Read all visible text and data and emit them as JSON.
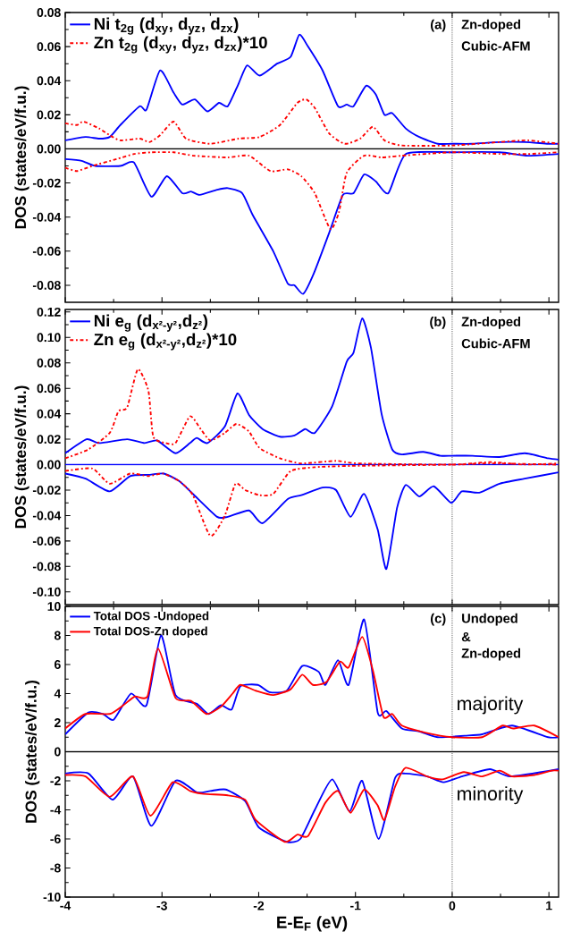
{
  "chart_data": [
    {
      "type": "line",
      "ylabel": "DOS (states/eV/f.u.)",
      "legend": "top left",
      "tick_labels": "y",
      "xlim": [
        -4,
        1.1
      ],
      "ylim": [
        -0.09,
        0.08
      ],
      "xticks": [
        -4,
        -3,
        -2,
        -1,
        0,
        1
      ],
      "yticks": [
        {
          "value": -0.08,
          "label": "-0.08"
        },
        {
          "value": -0.06,
          "label": "-0.06"
        },
        {
          "value": -0.04,
          "label": "-0.04"
        },
        {
          "value": -0.02,
          "label": "-0.02"
        },
        {
          "value": 0,
          "label": "0.00"
        },
        {
          "value": 0.02,
          "label": "0.02"
        },
        {
          "value": 0.04,
          "label": "0.04"
        },
        {
          "value": 0.06,
          "label": "0.06"
        },
        {
          "value": 0.08,
          "label": "0.08"
        }
      ],
      "annotations": [
        "(a)",
        "Zn-doped",
        "Cubic-AFM"
      ],
      "ref_lines": [
        {
          "axis": "x",
          "value": 0,
          "color": "#000000",
          "line_style": "dotted"
        },
        {
          "axis": "y",
          "value": 0,
          "color": "#000000",
          "line_style": "solid"
        }
      ],
      "series": [
        {
          "name": "Ni  t$_{2g}$ (d$_{xy}$, d$_{yz}$, d$_{zx}$)",
          "color": "#0000ff",
          "line_style": "solid",
          "x": [
            -4.0,
            -3.79,
            -3.65,
            -3.54,
            -3.43,
            -3.23,
            -3.16,
            -3.02,
            -2.88,
            -2.79,
            -2.66,
            -2.53,
            -2.41,
            -2.32,
            -2.21,
            -2.12,
            -1.99,
            -1.81,
            -1.67,
            -1.58,
            -1.49,
            -1.34,
            -1.18,
            -1.09,
            -1.02,
            -0.89,
            -0.79,
            -0.7,
            -0.62,
            -0.48,
            -0.34,
            -0.15,
            0,
            0.21,
            0.49,
            0.75,
            0.99,
            1.1
          ],
          "values": [
            0.005,
            0.007,
            0.006,
            0.007,
            0.014,
            0.025,
            0.023,
            0.046,
            0.033,
            0.026,
            0.029,
            0.022,
            0.027,
            0.025,
            0.038,
            0.049,
            0.043,
            0.05,
            0.054,
            0.067,
            0.06,
            0.046,
            0.025,
            0.026,
            0.025,
            0.037,
            0.032,
            0.02,
            0.021,
            0.012,
            0.007,
            0.003,
            0.003,
            0.003,
            0.004,
            0.004,
            0.003,
            0.003
          ]
        },
        {
          "name": "Zn t$_{2g}$ (d$_{xy}$, d$_{yz}$, d$_{zx}$)*10",
          "color": "#ff0000",
          "line_style": "dashdot",
          "x": [
            -4.0,
            -3.88,
            -3.81,
            -3.65,
            -3.54,
            -3.43,
            -3.23,
            -3.13,
            -3.02,
            -2.88,
            -2.75,
            -2.5,
            -2.21,
            -1.99,
            -1.78,
            -1.6,
            -1.51,
            -1.42,
            -1.27,
            -1.11,
            -0.95,
            -0.82,
            -0.7,
            -0.52,
            0,
            0.49,
            0.78,
            1.1
          ],
          "values": [
            0.015,
            0.014,
            0.016,
            0.012,
            0.008,
            0.005,
            0.006,
            0.004,
            0.008,
            0.016,
            0.006,
            0.003,
            0.006,
            0.007,
            0.014,
            0.027,
            0.029,
            0.024,
            0.009,
            0.003,
            0.006,
            0.013,
            0.005,
            0.002,
            0.002,
            0.004,
            0.005,
            0.003
          ]
        },
        {
          "color": "#0000ff",
          "line_style": "solid",
          "x": [
            -4.0,
            -3.83,
            -3.69,
            -3.43,
            -3.29,
            -3.11,
            -2.95,
            -2.79,
            -2.7,
            -2.61,
            -2.43,
            -2.32,
            -2.17,
            -2.06,
            -1.85,
            -1.7,
            -1.63,
            -1.54,
            -1.43,
            -1.27,
            -1.13,
            -1.02,
            -0.91,
            -0.79,
            -0.66,
            -0.48,
            0,
            0.49,
            0.78,
            1.1
          ],
          "values": [
            -0.006,
            -0.007,
            -0.01,
            -0.01,
            -0.008,
            -0.028,
            -0.016,
            -0.026,
            -0.025,
            -0.027,
            -0.024,
            -0.023,
            -0.026,
            -0.039,
            -0.06,
            -0.079,
            -0.08,
            -0.085,
            -0.073,
            -0.049,
            -0.027,
            -0.026,
            -0.015,
            -0.019,
            -0.026,
            -0.003,
            -0.002,
            -0.002,
            -0.004,
            -0.003
          ]
        },
        {
          "color": "#ff0000",
          "line_style": "dashdot",
          "x": [
            -4.0,
            -3.88,
            -3.72,
            -3.47,
            -3.29,
            -3.11,
            -2.88,
            -2.67,
            -2.32,
            -2.1,
            -1.88,
            -1.7,
            -1.56,
            -1.42,
            -1.26,
            -1.17,
            -1.09,
            -0.91,
            -0.73,
            -0.52,
            0,
            0.49,
            0.78,
            1.1
          ],
          "values": [
            -0.011,
            -0.013,
            -0.01,
            -0.006,
            -0.003,
            -0.002,
            -0.002,
            -0.004,
            -0.005,
            -0.004,
            -0.013,
            -0.012,
            -0.016,
            -0.026,
            -0.047,
            -0.037,
            -0.014,
            -0.004,
            -0.005,
            -0.004,
            -0.002,
            -0.003,
            -0.003,
            -0.002
          ]
        }
      ]
    },
    {
      "type": "line",
      "ylabel": "DOS (states/eV/f.u.)",
      "legend": "top left",
      "tick_labels": "y",
      "xlim": [
        -4,
        1.1
      ],
      "ylim": [
        -0.11,
        0.122
      ],
      "xticks": [
        -4,
        -3,
        -2,
        -1,
        0,
        1
      ],
      "yticks": [
        {
          "value": -0.1,
          "label": "-0.10"
        },
        {
          "value": -0.08,
          "label": "-0.08"
        },
        {
          "value": -0.06,
          "label": "-0.06"
        },
        {
          "value": -0.04,
          "label": "-0.04"
        },
        {
          "value": -0.02,
          "label": "-0.02"
        },
        {
          "value": 0,
          "label": "0.00"
        },
        {
          "value": 0.02,
          "label": "0.02"
        },
        {
          "value": 0.04,
          "label": "0.04"
        },
        {
          "value": 0.06,
          "label": "0.06"
        },
        {
          "value": 0.08,
          "label": "0.08"
        },
        {
          "value": 0.1,
          "label": "0.10"
        },
        {
          "value": 0.12,
          "label": "0.12"
        }
      ],
      "annotations": [
        "(b)",
        "Zn-doped",
        "Cubic-AFM"
      ],
      "ref_lines": [
        {
          "axis": "x",
          "value": 0,
          "color": "#000000",
          "line_style": "dotted"
        },
        {
          "axis": "y",
          "value": 0,
          "color": "#0000ff",
          "line_style": "solid"
        }
      ],
      "series": [
        {
          "name": "Ni  e$_{g}$ (d$_{x²-y²}$,d$_{z²}$)",
          "color": "#0000ff",
          "line_style": "solid",
          "x": [
            -4.0,
            -3.78,
            -3.65,
            -3.36,
            -3.18,
            -3.05,
            -2.86,
            -2.71,
            -2.64,
            -2.53,
            -2.35,
            -2.22,
            -2.1,
            -1.96,
            -1.78,
            -1.63,
            -1.52,
            -1.42,
            -1.24,
            -1.09,
            -1.02,
            -0.93,
            -0.84,
            -0.73,
            -0.62,
            -0.52,
            -0.3,
            -0.12,
            0,
            0.21,
            0.49,
            0.75,
            0.99,
            1.1
          ],
          "values": [
            0.009,
            0.02,
            0.017,
            0.02,
            0.017,
            0.019,
            0.009,
            0.017,
            0.021,
            0.017,
            0.03,
            0.056,
            0.039,
            0.028,
            0.022,
            0.023,
            0.028,
            0.025,
            0.046,
            0.081,
            0.088,
            0.115,
            0.092,
            0.04,
            0.012,
            0.008,
            0.01,
            0.007,
            0.007,
            0.007,
            0.006,
            0.009,
            0.005,
            0.004
          ]
        },
        {
          "name": "Zn e$_{g}$ (d$_{x²-y²}$,d$_{z²}$)*10",
          "color": "#ff0000",
          "line_style": "dashdot",
          "x": [
            -4.0,
            -3.76,
            -3.54,
            -3.45,
            -3.36,
            -3.25,
            -3.14,
            -3.09,
            -2.96,
            -2.86,
            -2.71,
            -2.6,
            -2.5,
            -2.35,
            -2.23,
            -2.1,
            -1.99,
            -1.78,
            -1.56,
            -1.2,
            -0.98,
            0,
            0.39,
            0.75,
            1.1
          ],
          "values": [
            0.005,
            0.012,
            0.025,
            0.042,
            0.045,
            0.075,
            0.058,
            0.022,
            0.017,
            0.017,
            0.038,
            0.028,
            0.019,
            0.025,
            0.032,
            0.026,
            0.013,
            0.005,
            0.001,
            0.003,
            0.001,
            0.0,
            0.002,
            0.0,
            0.001
          ]
        },
        {
          "color": "#0000ff",
          "line_style": "solid",
          "x": [
            -4.0,
            -3.79,
            -3.54,
            -3.33,
            -3.14,
            -2.98,
            -2.82,
            -2.68,
            -2.43,
            -2.32,
            -2.1,
            -1.96,
            -1.7,
            -1.56,
            -1.34,
            -1.2,
            -1.05,
            -0.91,
            -0.77,
            -0.68,
            -0.57,
            -0.48,
            -0.34,
            -0.19,
            -0.01,
            0.1,
            0.28,
            0.49,
            0.75,
            1.1
          ],
          "values": [
            -0.007,
            -0.011,
            -0.021,
            -0.009,
            -0.008,
            -0.007,
            -0.013,
            -0.023,
            -0.041,
            -0.041,
            -0.036,
            -0.046,
            -0.027,
            -0.024,
            -0.018,
            -0.02,
            -0.041,
            -0.023,
            -0.051,
            -0.082,
            -0.034,
            -0.016,
            -0.025,
            -0.017,
            -0.03,
            -0.021,
            -0.022,
            -0.015,
            -0.011,
            -0.006
          ]
        },
        {
          "color": "#ff0000",
          "line_style": "dashdot",
          "x": [
            -4.0,
            -3.72,
            -3.54,
            -3.33,
            -3.14,
            -2.99,
            -2.82,
            -2.68,
            -2.5,
            -2.35,
            -2.24,
            -2.14,
            -1.99,
            -1.85,
            -1.67,
            -1.42,
            -1.06,
            0,
            0.39,
            1.1
          ],
          "values": [
            -0.005,
            -0.003,
            -0.015,
            -0.007,
            -0.009,
            -0.007,
            -0.013,
            -0.024,
            -0.056,
            -0.04,
            -0.015,
            -0.02,
            -0.024,
            -0.023,
            -0.005,
            -0.002,
            -0.001,
            0.0,
            0.001,
            0.0
          ]
        }
      ]
    },
    {
      "type": "line",
      "xlabel": "E-E$_{F}$ (eV)",
      "ylabel": "DOS (states/eV/f.u.)",
      "legend": "top left",
      "xlim": [
        -4,
        1.1
      ],
      "ylim": [
        -10,
        10
      ],
      "xticks": [
        -4,
        -3,
        -2,
        -1,
        0,
        1
      ],
      "yticks": [
        -10,
        -8,
        -6,
        -4,
        -2,
        0,
        2,
        4,
        6,
        8,
        10
      ],
      "annotations": [
        "(c)",
        "Undoped",
        "&",
        "Zn-doped",
        "majority",
        "minority"
      ],
      "ref_lines": [
        {
          "axis": "x",
          "value": 0,
          "color": "#000000",
          "line_style": "dotted"
        },
        {
          "axis": "y",
          "value": 0,
          "color": "#000000",
          "line_style": "solid"
        }
      ],
      "series": [
        {
          "name": "Total DOS -Undoped",
          "color": "#0000ff",
          "line_style": "solid",
          "x": [
            -4.0,
            -3.76,
            -3.61,
            -3.5,
            -3.32,
            -3.16,
            -3.01,
            -2.86,
            -2.64,
            -2.52,
            -2.39,
            -2.28,
            -2.19,
            -2.01,
            -1.89,
            -1.71,
            -1.55,
            -1.38,
            -1.31,
            -1.18,
            -1.07,
            -0.91,
            -0.77,
            -0.68,
            -0.52,
            -0.34,
            -0.15,
            0.13,
            0.31,
            0.62,
            0.99,
            1.1
          ],
          "values": [
            1.2,
            2.7,
            2.6,
            2.2,
            4.0,
            3.2,
            8.0,
            3.9,
            3.3,
            2.6,
            3.2,
            2.9,
            4.5,
            4.6,
            4.1,
            4.2,
            5.9,
            5.5,
            4.6,
            6.3,
            4.6,
            9.1,
            2.7,
            2.8,
            1.6,
            1.4,
            1.0,
            1.1,
            1.2,
            1.8,
            1.0,
            1.0
          ]
        },
        {
          "name": "Total DOS-Zn doped",
          "color": "#ff0000",
          "line_style": "solid",
          "x": [
            -4.0,
            -3.79,
            -3.54,
            -3.4,
            -3.28,
            -3.15,
            -3.04,
            -2.86,
            -2.7,
            -2.54,
            -2.39,
            -2.27,
            -2.19,
            -2.03,
            -1.85,
            -1.67,
            -1.55,
            -1.44,
            -1.3,
            -1.16,
            -1.07,
            -0.93,
            -0.82,
            -0.71,
            -0.62,
            -0.52,
            -0.27,
            0,
            0.31,
            0.52,
            0.63,
            0.85,
            1.1
          ],
          "values": [
            1.6,
            2.6,
            2.6,
            3.2,
            3.8,
            3.8,
            7.1,
            3.7,
            3.5,
            2.6,
            3.1,
            4.0,
            4.6,
            4.2,
            3.9,
            4.3,
            5.3,
            4.6,
            4.8,
            6.2,
            5.8,
            7.9,
            5.6,
            2.4,
            2.6,
            1.8,
            1.3,
            1.0,
            1.0,
            1.8,
            1.6,
            1.8,
            1.0
          ]
        },
        {
          "color": "#0000ff",
          "line_style": "solid",
          "x": [
            -4.0,
            -3.76,
            -3.51,
            -3.3,
            -3.11,
            -2.86,
            -2.64,
            -2.5,
            -2.34,
            -2.14,
            -2.0,
            -1.71,
            -1.57,
            -1.42,
            -1.24,
            -1.06,
            -0.93,
            -0.76,
            -0.59,
            -0.48,
            -0.26,
            -0.09,
            0.1,
            0.39,
            0.6,
            1.1
          ],
          "values": [
            -1.5,
            -1.5,
            -3.3,
            -1.7,
            -5.1,
            -2.0,
            -2.8,
            -2.7,
            -2.6,
            -3.4,
            -5.2,
            -6.2,
            -6.0,
            -4.0,
            -1.9,
            -4.1,
            -2.0,
            -6.0,
            -1.8,
            -1.5,
            -1.7,
            -2.1,
            -1.7,
            -1.2,
            -1.7,
            -1.2
          ]
        },
        {
          "color": "#ff0000",
          "line_style": "solid",
          "x": [
            -4.0,
            -3.79,
            -3.54,
            -3.3,
            -3.12,
            -2.89,
            -2.71,
            -2.57,
            -2.32,
            -2.14,
            -2.03,
            -1.73,
            -1.6,
            -1.49,
            -1.31,
            -1.18,
            -1.05,
            -0.91,
            -0.77,
            -0.7,
            -0.59,
            -0.48,
            -0.26,
            -0.1,
            0.12,
            0.31,
            0.49,
            0.62,
            0.85,
            1.03,
            1.1
          ],
          "values": [
            -1.6,
            -1.7,
            -3.1,
            -1.7,
            -4.4,
            -2.1,
            -2.7,
            -2.9,
            -3.0,
            -3.3,
            -4.7,
            -6.2,
            -5.7,
            -5.8,
            -3.5,
            -2.7,
            -4.2,
            -2.6,
            -3.7,
            -4.7,
            -2.4,
            -1.1,
            -1.7,
            -1.9,
            -1.4,
            -1.7,
            -1.3,
            -1.7,
            -1.6,
            -1.3,
            -1.3
          ]
        }
      ]
    }
  ]
}
